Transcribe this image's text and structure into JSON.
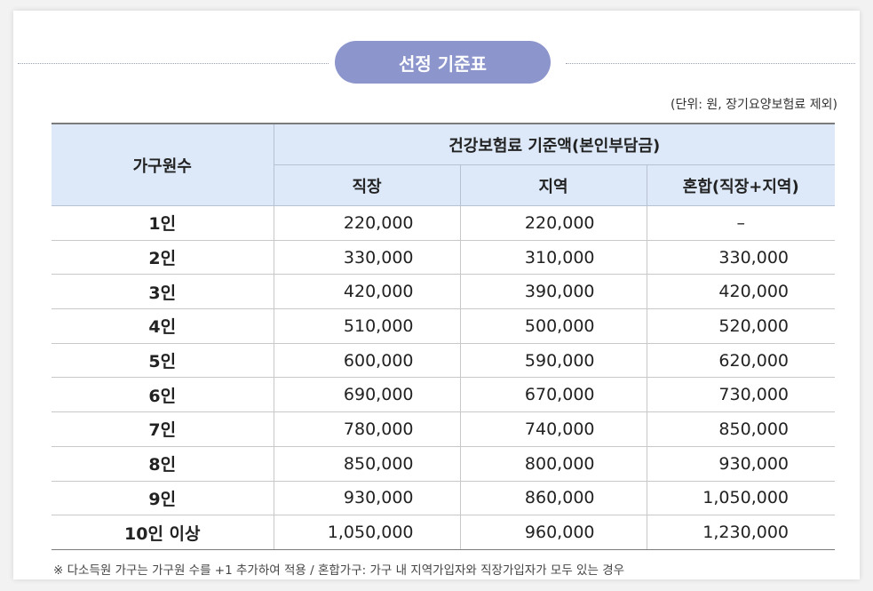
{
  "title": "선정 기준표",
  "unit_note": "(단위: 원, 장기요양보험료 제외)",
  "table": {
    "header_household": "가구원수",
    "header_group": "건강보험료 기준액(본인부담금)",
    "header_cols": [
      "직장",
      "지역",
      "혼합(직장+지역)"
    ],
    "rows": [
      {
        "household": "1인",
        "jikjang": "220,000",
        "jiyeok": "220,000",
        "honhap": "–"
      },
      {
        "household": "2인",
        "jikjang": "330,000",
        "jiyeok": "310,000",
        "honhap": "330,000"
      },
      {
        "household": "3인",
        "jikjang": "420,000",
        "jiyeok": "390,000",
        "honhap": "420,000"
      },
      {
        "household": "4인",
        "jikjang": "510,000",
        "jiyeok": "500,000",
        "honhap": "520,000"
      },
      {
        "household": "5인",
        "jikjang": "600,000",
        "jiyeok": "590,000",
        "honhap": "620,000"
      },
      {
        "household": "6인",
        "jikjang": "690,000",
        "jiyeok": "670,000",
        "honhap": "730,000"
      },
      {
        "household": "7인",
        "jikjang": "780,000",
        "jiyeok": "740,000",
        "honhap": "850,000"
      },
      {
        "household": "8인",
        "jikjang": "850,000",
        "jiyeok": "800,000",
        "honhap": "930,000"
      },
      {
        "household": "9인",
        "jikjang": "930,000",
        "jiyeok": "860,000",
        "honhap": "1,050,000"
      },
      {
        "household": "10인 이상",
        "jikjang": "1,050,000",
        "jiyeok": "960,000",
        "honhap": "1,230,000"
      }
    ]
  },
  "footnote": "※ 다소득원 가구는 가구원 수를 +1 추가하여 적용 / 혼합가구: 가구 내 지역가입자와 직장가입자가 모두 있는 경우",
  "colors": {
    "title_pill": "#8c95cc",
    "header_bg": "#dde9f9"
  }
}
